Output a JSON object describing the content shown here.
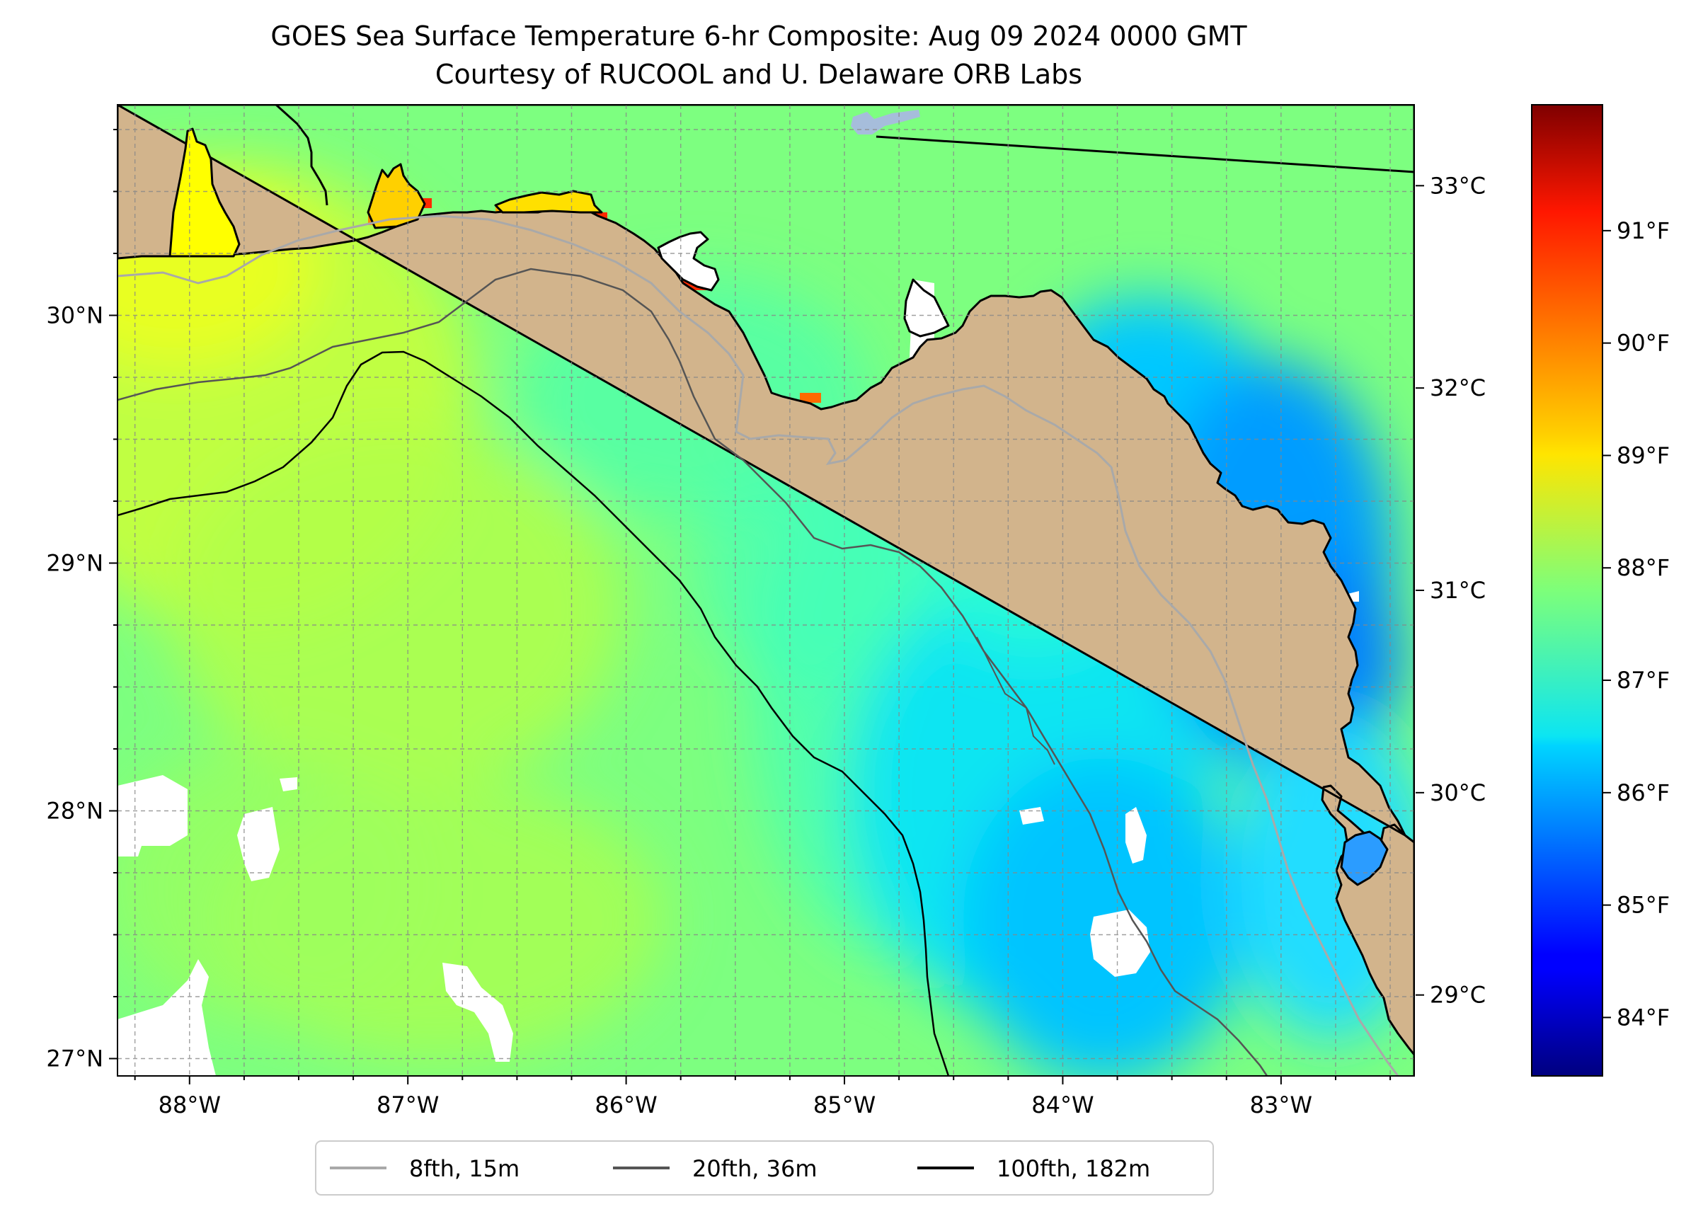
{
  "figure": {
    "title_line1": "GOES Sea Surface Temperature 6-hr Composite: Aug 09 2024 0000 GMT",
    "title_line2": "Courtesy of RUCOOL and U. Delaware ORB Labs"
  },
  "map": {
    "lon_range": [
      -88.33,
      -82.39
    ],
    "lat_range": [
      26.93,
      30.85
    ],
    "lon_ticks": [
      "88°W",
      "87°W",
      "86°W",
      "85°W",
      "84°W",
      "83°W"
    ],
    "lat_ticks": [
      "27°N",
      "28°N",
      "29°N",
      "30°N"
    ],
    "land_color": "#d2b48c",
    "no_data_color": "#ffffff",
    "gridlines": true,
    "lake_color": "#a6bddb"
  },
  "colorbar": {
    "colormap": "jet",
    "range_c": [
      28.6,
      33.4
    ],
    "celsius_ticks": [
      "29°C",
      "30°C",
      "31°C",
      "32°C",
      "33°C"
    ],
    "fahrenheit_ticks": [
      "84°F",
      "85°F",
      "86°F",
      "87°F",
      "88°F",
      "89°F",
      "90°F",
      "91°F"
    ]
  },
  "legend": {
    "placement": "bottom-center",
    "items": [
      {
        "label": "8fth, 15m",
        "color": "#a9a9a9"
      },
      {
        "label": "20fth, 36m",
        "color": "#555555"
      },
      {
        "label": "100fth, 182m",
        "color": "#000000"
      }
    ]
  }
}
